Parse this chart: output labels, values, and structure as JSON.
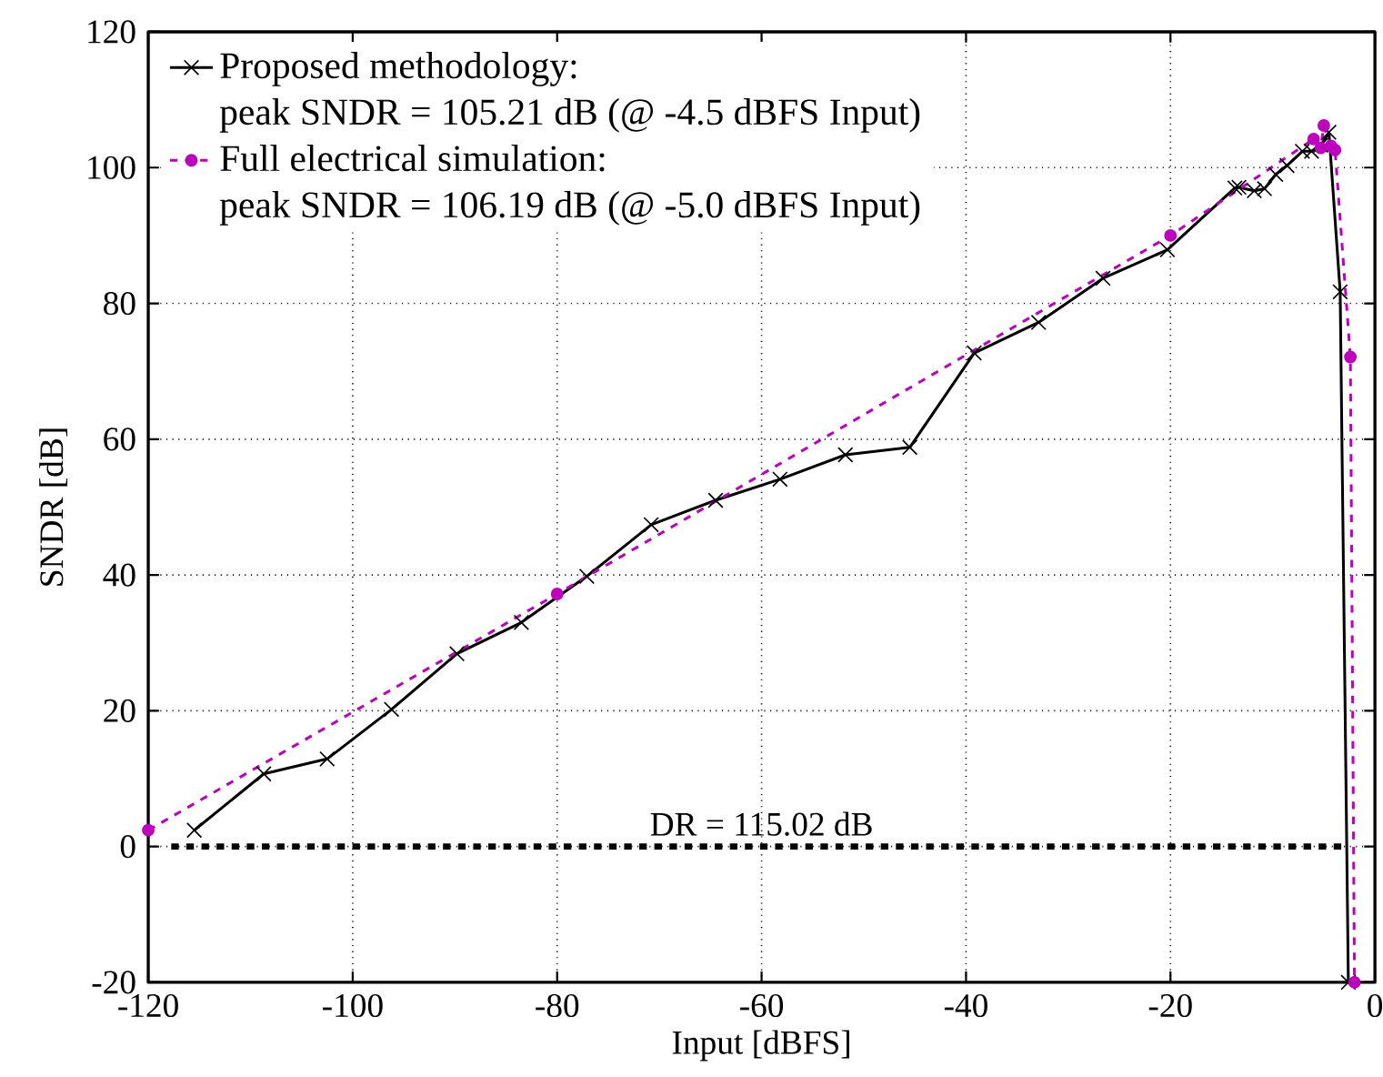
{
  "chart_data": {
    "type": "line",
    "xlabel": "Input [dBFS]",
    "ylabel": "SNDR [dB]",
    "xlim": [
      -120,
      0
    ],
    "ylim": [
      -20,
      120
    ],
    "xticks": [
      -120,
      -100,
      -80,
      -60,
      -40,
      -20,
      0
    ],
    "yticks": [
      -20,
      0,
      20,
      40,
      60,
      80,
      100,
      120
    ],
    "grid": true,
    "legend": "top left",
    "series": [
      {
        "name": "Proposed methodology:",
        "color": "#000000",
        "marker": "cross",
        "line_style": "solid",
        "x": [
          -115.5,
          -108.7,
          -102.5,
          -96.2,
          -89.8,
          -83.5,
          -77.1,
          -70.8,
          -64.5,
          -58.2,
          -51.8,
          -45.5,
          -39.2,
          -32.9,
          -26.6,
          -20.3,
          -13.7,
          -13.3,
          -11.8,
          -10.8,
          -9.7,
          -8.6,
          -7.1,
          -6.2,
          -5.3,
          -4.5,
          -3.4,
          -2.6
        ],
        "values": [
          2.4,
          10.7,
          12.9,
          20.2,
          28.4,
          33.0,
          39.8,
          47.4,
          51.0,
          54.1,
          57.7,
          58.8,
          72.7,
          77.2,
          83.7,
          87.9,
          97.0,
          97.1,
          96.6,
          96.9,
          99.0,
          100.3,
          102.4,
          102.4,
          103.3,
          105.2,
          81.7,
          -20
        ]
      },
      {
        "name": "Full electrical simulation:",
        "color": "#bf00bf",
        "marker": "circle",
        "line_style": "dashed",
        "x": [
          -120,
          -80,
          -20,
          -6.0,
          -5.3,
          -5.0,
          -4.3,
          -3.9,
          -2.4,
          -2.0
        ],
        "values": [
          2.4,
          37.2,
          90.0,
          104.2,
          102.9,
          106.2,
          103.2,
          102.6,
          72.1,
          -20
        ]
      },
      {
        "color": "#000000",
        "marker": "none",
        "line_style": "dashed",
        "x": [
          -117.75,
          -2.73
        ],
        "values": [
          0,
          0
        ]
      }
    ],
    "annotations": [
      "peak SNDR = 105.21 dB (@ -4.5 dBFS Input)",
      "peak SNDR = 106.19 dB (@ -5.0 dBFS Input)",
      {
        "text": "DR = 115.02 dB",
        "x": -60,
        "y": 0
      }
    ]
  }
}
